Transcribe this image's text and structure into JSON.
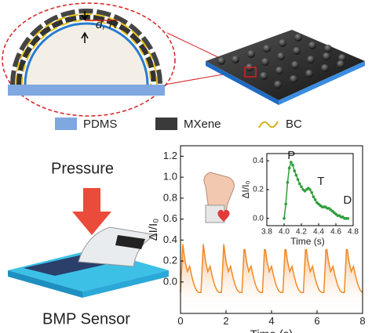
{
  "diagram": {
    "dimension_label": "d, R",
    "legend": [
      "PDMS",
      "MXene",
      "BC"
    ],
    "pressure_label": "Pressure",
    "sensor_label": "BMP Sensor"
  },
  "chart_data": [
    {
      "type": "line",
      "xlabel": "Time (s)",
      "ylabel": "ΔI/I₀",
      "area": true,
      "xlim": [
        0,
        8
      ],
      "xticks": [
        0,
        2,
        4,
        6,
        8
      ],
      "ylim": [
        -0.3,
        1.3
      ],
      "yticks": [
        {
          "value": 0,
          "label": "0.0"
        },
        0.2,
        0.4,
        0.6,
        0.8,
        {
          "value": 1,
          "label": "1.0"
        },
        1.2
      ],
      "x": [
        0.0,
        0.1,
        0.2,
        0.3,
        0.4,
        0.5,
        0.6,
        0.7,
        0.8,
        0.9,
        1.0,
        1.1,
        1.2,
        1.3,
        1.4,
        1.5,
        1.6,
        1.7,
        1.8,
        1.9,
        2.0,
        2.1,
        2.2,
        2.3,
        2.4,
        2.5,
        2.6,
        2.7,
        2.8,
        2.9,
        3.0,
        3.1,
        3.2,
        3.3,
        3.4,
        3.5,
        3.6,
        3.7,
        3.8,
        3.9,
        4.0,
        4.1,
        4.2,
        4.3,
        4.4,
        4.5,
        4.6,
        4.7,
        4.8,
        4.9,
        5.0,
        5.1,
        5.2,
        5.3,
        5.4,
        5.5,
        5.6,
        5.7,
        5.8,
        5.9,
        6.0,
        6.1,
        6.2,
        6.3,
        6.4,
        6.5,
        6.6,
        6.7,
        6.8,
        6.9,
        7.0,
        7.1,
        7.2,
        7.3,
        7.4,
        7.5,
        7.6,
        7.7,
        7.8,
        7.9,
        8.0
      ],
      "series": [
        {
          "color": "#f08a24",
          "values": [
            -0.1,
            0.36,
            0.2,
            0.1,
            0.15,
            0.05,
            -0.03,
            -0.08,
            -0.1,
            -0.1,
            0.36,
            0.2,
            0.1,
            0.15,
            0.05,
            -0.03,
            -0.08,
            -0.1,
            -0.1,
            0.36,
            0.2,
            0.1,
            0.15,
            0.05,
            -0.03,
            -0.08,
            -0.1,
            -0.1,
            0.36,
            0.2,
            0.1,
            0.15,
            0.05,
            -0.03,
            -0.08,
            -0.1,
            -0.1,
            0.36,
            0.2,
            0.1,
            0.15,
            0.05,
            -0.03,
            -0.08,
            -0.1,
            -0.1,
            0.36,
            0.2,
            0.1,
            0.15,
            0.05,
            -0.03,
            -0.08,
            -0.1,
            -0.1,
            0.36,
            0.2,
            0.1,
            0.15,
            0.05,
            -0.03,
            -0.08,
            -0.1,
            -0.1,
            0.36,
            0.2,
            0.1,
            0.15,
            0.05,
            -0.03,
            -0.08,
            -0.1,
            -0.1,
            0.36,
            0.2,
            0.1,
            0.15,
            0.05,
            -0.03,
            -0.08,
            -0.1
          ]
        }
      ]
    },
    {
      "type": "line",
      "xlabel": "Time (s)",
      "ylabel": "ΔI/I₀",
      "markers": true,
      "annotations": [
        "P",
        "T",
        "D"
      ],
      "xlim": [
        3.8,
        4.8
      ],
      "xticks": [
        3.8,
        {
          "value": 4,
          "label": "4.0"
        },
        4.2,
        4.4,
        4.6,
        4.8
      ],
      "ylim": [
        -0.05,
        0.45
      ],
      "yticks": [
        {
          "value": 0,
          "label": "0.0"
        },
        0.2,
        0.4
      ],
      "x": [
        4.0,
        4.02,
        4.04,
        4.06,
        4.08,
        4.1,
        4.12,
        4.14,
        4.16,
        4.18,
        4.2,
        4.22,
        4.24,
        4.26,
        4.28,
        4.3,
        4.32,
        4.34,
        4.36,
        4.38,
        4.4,
        4.42,
        4.44,
        4.46,
        4.48,
        4.5,
        4.52,
        4.54,
        4.56,
        4.58,
        4.6,
        4.62,
        4.64,
        4.66,
        4.68,
        4.7,
        4.72,
        4.74
      ],
      "series": [
        {
          "color": "#2e9e3a",
          "values": [
            0.0,
            0.1,
            0.25,
            0.35,
            0.39,
            0.37,
            0.33,
            0.3,
            0.27,
            0.24,
            0.22,
            0.2,
            0.19,
            0.2,
            0.21,
            0.2,
            0.18,
            0.15,
            0.13,
            0.11,
            0.1,
            0.09,
            0.08,
            0.08,
            0.08,
            0.07,
            0.07,
            0.06,
            0.05,
            0.04,
            0.03,
            0.02,
            0.02,
            0.01,
            0.01,
            0.0,
            0.0,
            0.0
          ]
        }
      ]
    }
  ]
}
